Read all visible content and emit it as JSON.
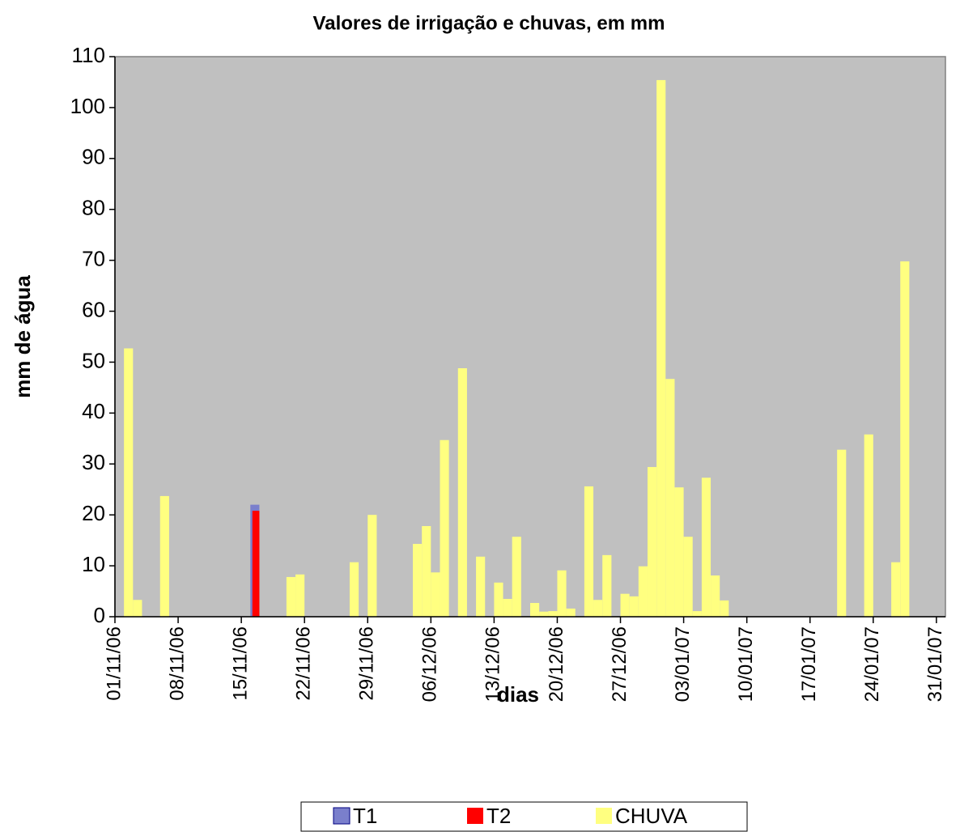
{
  "chart_data": {
    "type": "bar",
    "title": "Valores de irrigação e chuvas, em mm",
    "x_label": "dias",
    "y_label": "mm de água",
    "xlim": [
      "01/11/06",
      "01/02/07"
    ],
    "xticks": [
      "01/11/06",
      "08/11/06",
      "15/11/06",
      "22/11/06",
      "29/11/06",
      "06/12/06",
      "13/12/06",
      "20/12/06",
      "27/12/06",
      "03/01/07",
      "10/01/07",
      "17/01/07",
      "24/01/07",
      "31/01/07"
    ],
    "ylim": [
      0,
      110
    ],
    "yticks": [
      0,
      10,
      20,
      30,
      40,
      50,
      60,
      70,
      80,
      90,
      100,
      110
    ],
    "series": [
      {
        "name": "T1",
        "color": "#7a7fcc",
        "x": [
          "16/11/06"
        ],
        "values": [
          22
        ]
      },
      {
        "name": "T2",
        "color": "#ff0000",
        "x": [
          "16/11/06"
        ],
        "values": [
          20.8
        ]
      },
      {
        "name": "CHUVA",
        "color": "#ffff80",
        "x": [
          "02/11/06",
          "03/11/06",
          "06/11/06",
          "20/11/06",
          "21/11/06",
          "27/11/06",
          "29/11/06",
          "04/12/06",
          "05/12/06",
          "06/12/06",
          "07/12/06",
          "09/12/06",
          "11/12/06",
          "13/12/06",
          "14/12/06",
          "15/12/06",
          "17/12/06",
          "18/12/06",
          "19/12/06",
          "20/12/06",
          "21/12/06",
          "23/12/06",
          "24/12/06",
          "25/12/06",
          "27/12/06",
          "28/12/06",
          "29/12/06",
          "30/12/06",
          "31/12/06",
          "01/01/07",
          "02/01/07",
          "03/01/07",
          "04/01/07",
          "05/01/07",
          "06/01/07",
          "07/01/07",
          "20/01/07",
          "23/01/07",
          "26/01/07",
          "27/01/07"
        ],
        "values": [
          52.7,
          3.3,
          23.7,
          7.8,
          8.3,
          10.7,
          20.0,
          14.3,
          17.8,
          8.7,
          34.7,
          48.8,
          11.8,
          6.7,
          3.5,
          15.7,
          2.7,
          1.0,
          1.1,
          9.1,
          1.6,
          25.6,
          3.3,
          12.1,
          4.5,
          4.0,
          9.9,
          29.4,
          105.4,
          46.7,
          25.4,
          15.7,
          1.1,
          27.3,
          8.1,
          3.2,
          32.8,
          35.8,
          10.7,
          69.8
        ]
      }
    ]
  }
}
